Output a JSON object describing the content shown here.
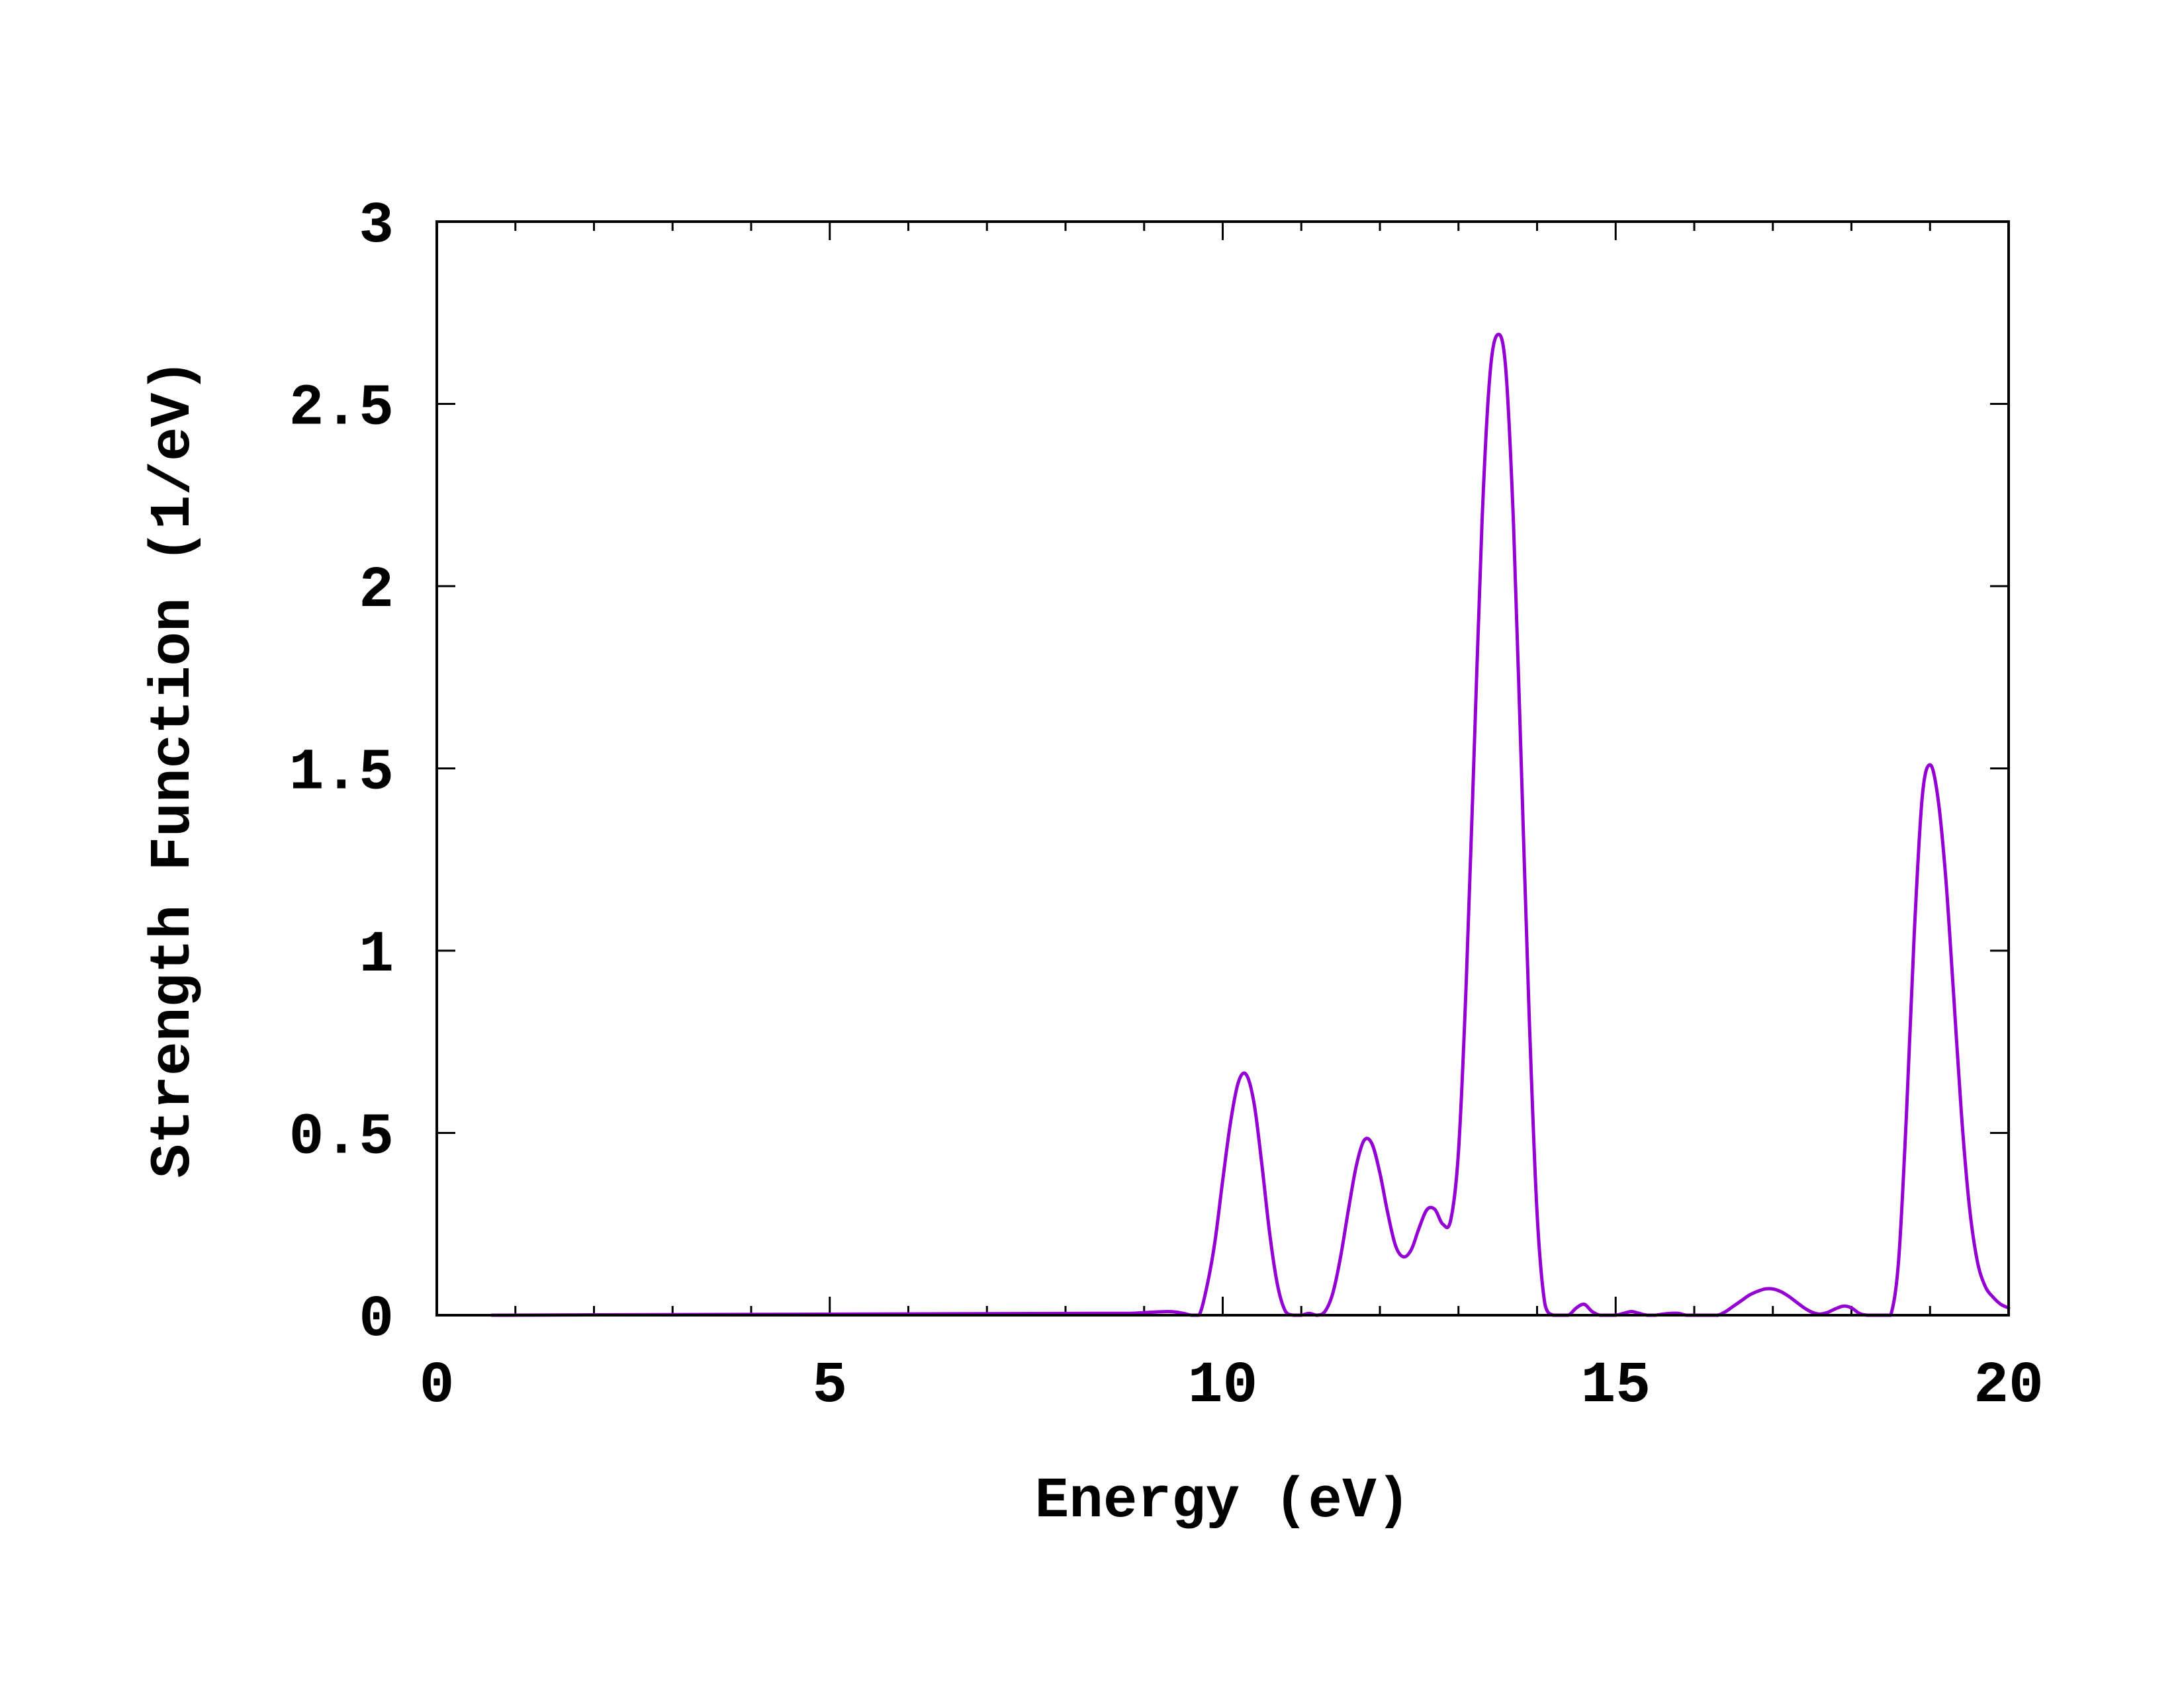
{
  "chart_data": {
    "type": "line",
    "title": "",
    "xlabel": "Energy (eV)",
    "ylabel": "Strength Function (1/eV)",
    "xlim": [
      0,
      20
    ],
    "ylim": [
      0,
      3
    ],
    "xticks": [
      0,
      5,
      10,
      15,
      20
    ],
    "xtick_labels": [
      "0",
      "5",
      "10",
      "15",
      "20"
    ],
    "yticks": [
      0,
      0.5,
      1,
      1.5,
      2,
      2.5,
      3
    ],
    "ytick_labels": [
      "0",
      "0.5",
      "1",
      "1.5",
      "2",
      "2.5",
      "3"
    ],
    "x_minor_tick_step": 1,
    "grid": false,
    "legend": "none",
    "series": [
      {
        "color": "#9400d3",
        "x": [
          0.7,
          8.4,
          8.8,
          9.3,
          9.5,
          9.6,
          9.7,
          9.8,
          9.9,
          10.0,
          10.1,
          10.2,
          10.3,
          10.4,
          10.5,
          10.6,
          10.7,
          10.8,
          10.9,
          11.0,
          11.1,
          11.2,
          11.3,
          11.4,
          11.5,
          11.6,
          11.7,
          11.8,
          11.9,
          12.0,
          12.1,
          12.2,
          12.3,
          12.4,
          12.5,
          12.6,
          12.7,
          12.8,
          12.9,
          13.0,
          13.1,
          13.2,
          13.3,
          13.4,
          13.5,
          13.6,
          13.7,
          13.8,
          13.9,
          14.0,
          14.1,
          14.2,
          14.3,
          14.4,
          14.5,
          14.6,
          14.7,
          14.8,
          14.9,
          15.0,
          15.1,
          15.2,
          15.3,
          15.4,
          15.5,
          15.6,
          15.7,
          15.8,
          15.9,
          16.0,
          16.1,
          16.2,
          16.3,
          16.4,
          16.5,
          16.6,
          16.7,
          16.8,
          16.9,
          17.0,
          17.1,
          17.2,
          17.3,
          17.4,
          17.5,
          17.6,
          17.7,
          17.8,
          17.9,
          18.0,
          18.1,
          18.2,
          18.3,
          18.4,
          18.5,
          18.6,
          18.7,
          18.8,
          18.9,
          19.0,
          19.1,
          19.2,
          19.3,
          19.4,
          19.5,
          19.6,
          19.7,
          19.8,
          19.9,
          20.0
        ],
        "y": [
          0.0,
          0.005,
          0.005,
          0.01,
          0.005,
          0.0,
          0.0,
          0.08,
          0.2,
          0.37,
          0.53,
          0.64,
          0.66,
          0.58,
          0.41,
          0.22,
          0.08,
          0.01,
          0.0,
          0.0,
          0.005,
          0.0,
          0.01,
          0.06,
          0.16,
          0.29,
          0.41,
          0.48,
          0.47,
          0.39,
          0.28,
          0.19,
          0.16,
          0.18,
          0.24,
          0.29,
          0.29,
          0.25,
          0.26,
          0.45,
          0.92,
          1.55,
          2.18,
          2.58,
          2.69,
          2.6,
          2.17,
          1.5,
          0.82,
          0.28,
          0.03,
          0.0,
          0.0,
          0.0,
          0.02,
          0.03,
          0.01,
          0.0,
          0.0,
          0.0,
          0.005,
          0.01,
          0.005,
          0.0,
          0.0,
          0.003,
          0.005,
          0.005,
          0.0,
          0.0,
          0.0,
          0.0,
          0.0,
          0.01,
          0.025,
          0.04,
          0.055,
          0.065,
          0.072,
          0.072,
          0.065,
          0.052,
          0.036,
          0.02,
          0.008,
          0.003,
          0.008,
          0.018,
          0.025,
          0.02,
          0.005,
          0.0,
          0.0,
          0.0,
          0.0,
          0.15,
          0.55,
          1.05,
          1.42,
          1.51,
          1.42,
          1.2,
          0.88,
          0.55,
          0.3,
          0.15,
          0.08,
          0.05,
          0.03,
          0.02
        ]
      }
    ]
  }
}
